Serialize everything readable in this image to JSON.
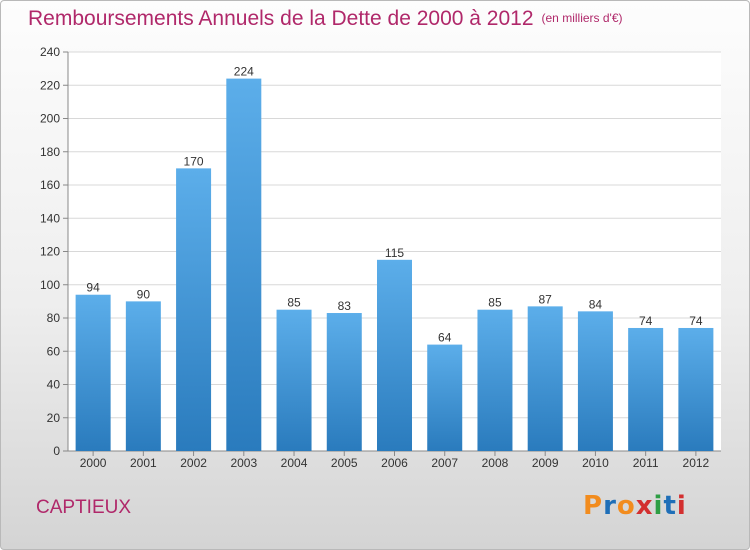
{
  "title": {
    "main": "Remboursements Annuels de la Dette de 2000 à 2012",
    "unit": "(en milliers d'€)"
  },
  "location": "CAPTIEUX",
  "logo": {
    "text": "Proxiti",
    "letter_colors": [
      "#f28c1e",
      "#1f6fb8",
      "#f28c1e",
      "#d32f2f",
      "#2e9e44",
      "#1f6fb8",
      "#d32f2f"
    ]
  },
  "colors": {
    "title": "#b0286a",
    "bar_top": "#5caeea",
    "bar_bottom": "#2a7bbd",
    "grid": "#d8d8d8",
    "axis": "#888888",
    "text": "#333333"
  },
  "chart_data": {
    "type": "bar",
    "categories": [
      "2000",
      "2001",
      "2002",
      "2003",
      "2004",
      "2005",
      "2006",
      "2007",
      "2008",
      "2009",
      "2010",
      "2011",
      "2012"
    ],
    "values": [
      94,
      90,
      170,
      224,
      85,
      83,
      115,
      64,
      85,
      87,
      84,
      74,
      74
    ],
    "yticks": [
      0,
      20,
      40,
      60,
      80,
      100,
      120,
      140,
      160,
      180,
      200,
      220,
      240
    ],
    "ylim": [
      0,
      240
    ],
    "grid": true,
    "data_labels": true
  }
}
